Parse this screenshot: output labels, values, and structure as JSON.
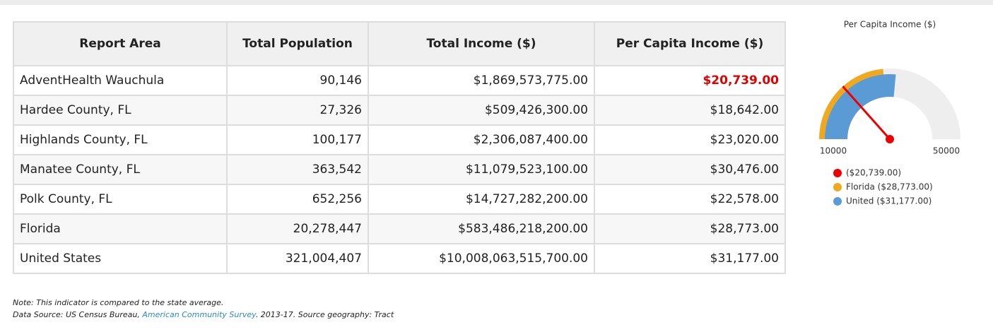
{
  "table": {
    "headers": [
      "Report Area",
      "Total Population",
      "Total Income ($)",
      "Per Capita Income ($)"
    ],
    "rows": [
      [
        "AdventHealth Wauchula",
        "90,146",
        "$1,869,573,775.00",
        "$20,739.00"
      ],
      [
        "Hardee County, FL",
        "27,326",
        "$509,426,300.00",
        "$18,642.00"
      ],
      [
        "Highlands County, FL",
        "100,177",
        "$2,306,087,400.00",
        "$23,020.00"
      ],
      [
        "Manatee County, FL",
        "363,542",
        "$11,079,523,100.00",
        "$30,476.00"
      ],
      [
        "Polk County, FL",
        "652,256",
        "$14,727,282,200.00",
        "$22,578.00"
      ],
      [
        "Florida",
        "20,278,447",
        "$583,486,218,200.00",
        "$28,773.00"
      ],
      [
        "United States",
        "321,004,407",
        "$10,008,063,515,700.00",
        "$31,177.00"
      ]
    ],
    "highlight": {
      "row": 0,
      "column": 3,
      "color": "#e00000"
    }
  },
  "notes": {
    "note": "Note: This indicator is compared to the state average.",
    "source_prefix": "Data Source: US Census Bureau,",
    "source_link": "American Community Survey",
    "source_suffix": ". 2013-17. Source geography: Tract"
  },
  "chart_data": {
    "type": "gauge",
    "title": "Per Capita Income ($)",
    "ylim": [
      10000,
      50000
    ],
    "yticks": [
      10000,
      50000
    ],
    "series": [
      {
        "name": "($20,739.00)",
        "color": "#ee0000",
        "value": 20739
      },
      {
        "name": "Florida ($28,773.00)",
        "color": "#f0a81e",
        "value": 28773
      },
      {
        "name": "United ($31,177.00)",
        "color": "#5b9bd5",
        "value": 31177
      }
    ]
  }
}
